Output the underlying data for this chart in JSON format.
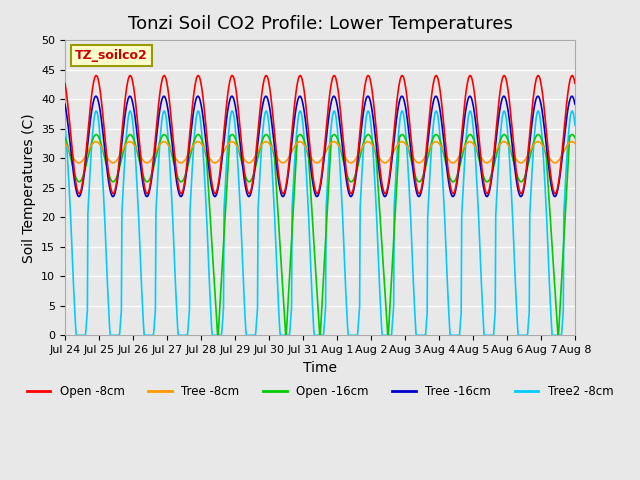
{
  "title": "Tonzi Soil CO2 Profile: Lower Temperatures",
  "xlabel": "Time",
  "ylabel": "Soil Temperatures (C)",
  "ylim": [
    0,
    50
  ],
  "label_text": "TZ_soilco2",
  "legend_entries": [
    "Open -8cm",
    "Tree -8cm",
    "Open -16cm",
    "Tree -16cm",
    "Tree2 -8cm"
  ],
  "line_colors": [
    "#ff0000",
    "#ff9900",
    "#00cc00",
    "#0000cc",
    "#00ccff"
  ],
  "x_tick_labels": [
    "Jul 24",
    "Jul 25",
    "Jul 26",
    "Jul 27",
    "Jul 28",
    "Jul 29",
    "Jul 30",
    "Jul 31",
    "Aug 1",
    "Aug 2",
    "Aug 3",
    "Aug 4",
    "Aug 5",
    "Aug 6",
    "Aug 7",
    "Aug 8"
  ],
  "background_color": "#e8e8e8",
  "plot_bg_color": "#e8e8e8",
  "grid_color": "#ffffff",
  "title_fontsize": 13,
  "axis_fontsize": 10,
  "tick_fontsize": 8,
  "n_points": 960,
  "days": 15
}
